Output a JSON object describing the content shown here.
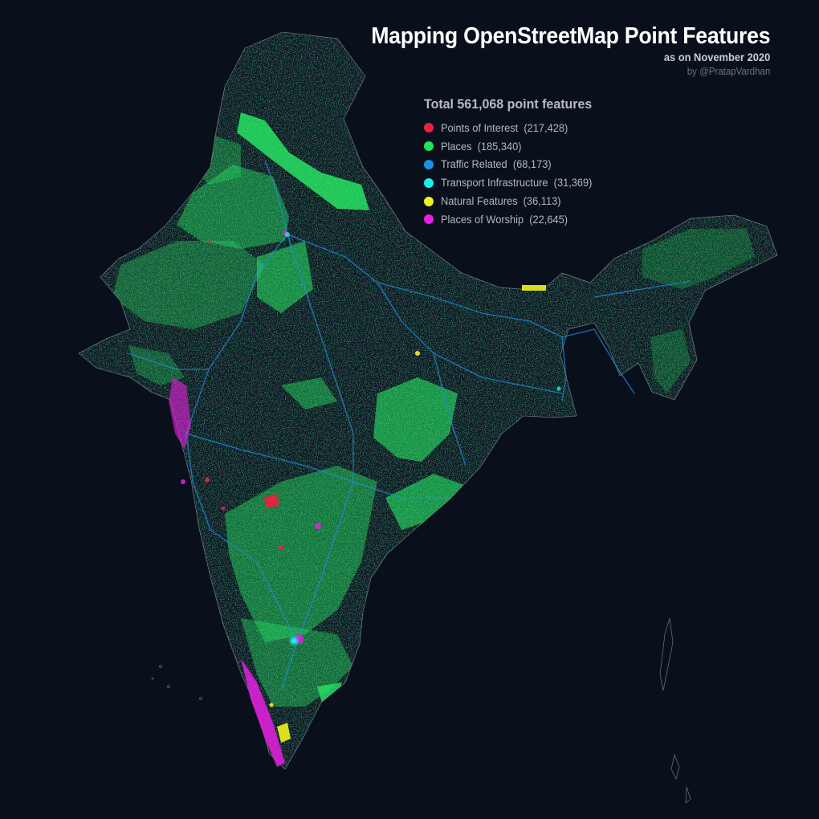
{
  "title": "Mapping OpenStreetMap Point Features",
  "subtitle": "as on November 2020",
  "byline": "by @PratapVardhan",
  "legend": {
    "total": "Total 561,068 point features",
    "items": [
      {
        "label": "Points of Interest",
        "count": "(217,428)",
        "color": "#ef1f3b"
      },
      {
        "label": "Places",
        "count": "(185,340)",
        "color": "#1fe35c"
      },
      {
        "label": "Traffic Related",
        "count": "(68,173)",
        "color": "#1e8fe6"
      },
      {
        "label": "Transport Infrastructure",
        "count": "(31,369)",
        "color": "#18f0e8"
      },
      {
        "label": "Natural Features",
        "count": "(36,113)",
        "color": "#f2f21e"
      },
      {
        "label": "Places of Worship",
        "count": "(22,645)",
        "color": "#e81fe3"
      }
    ]
  },
  "colors": {
    "background": "#0a101b",
    "boundary": "#8e929b"
  }
}
